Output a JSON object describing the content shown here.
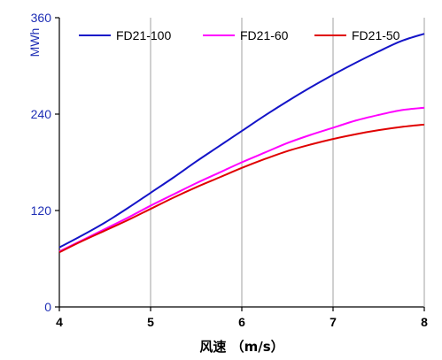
{
  "chart_data": {
    "type": "line",
    "xlabel": "风速 （m/s）",
    "ylabel": "MWh",
    "xlim": [
      4,
      8
    ],
    "ylim": [
      0,
      360
    ],
    "x_ticks": [
      "4",
      "5",
      "6",
      "7",
      "8"
    ],
    "y_ticks": [
      "0",
      "120",
      "240",
      "360"
    ],
    "grid": "vertical",
    "legend_position": "top",
    "x": [
      4,
      4.25,
      4.5,
      4.75,
      5,
      5.25,
      5.5,
      5.75,
      6,
      6.25,
      6.5,
      6.75,
      7,
      7.25,
      7.5,
      7.75,
      8
    ],
    "series": [
      {
        "name": "FD21-100",
        "color": "#1414c8",
        "values": [
          74,
          89,
          105,
          123,
          142,
          161,
          181,
          200,
          219,
          238,
          256,
          273,
          289,
          304,
          318,
          331,
          340
        ]
      },
      {
        "name": "FD21-60",
        "color": "#ff00ff",
        "values": [
          69,
          83,
          97,
          111,
          126,
          140,
          154,
          167,
          180,
          192,
          204,
          214,
          223,
          232,
          239,
          245,
          248
        ]
      },
      {
        "name": "FD21-50",
        "color": "#e00000",
        "values": [
          68,
          82,
          95,
          108,
          122,
          136,
          149,
          161,
          173,
          184,
          194,
          202,
          209,
          215,
          220,
          224,
          227
        ]
      }
    ]
  }
}
